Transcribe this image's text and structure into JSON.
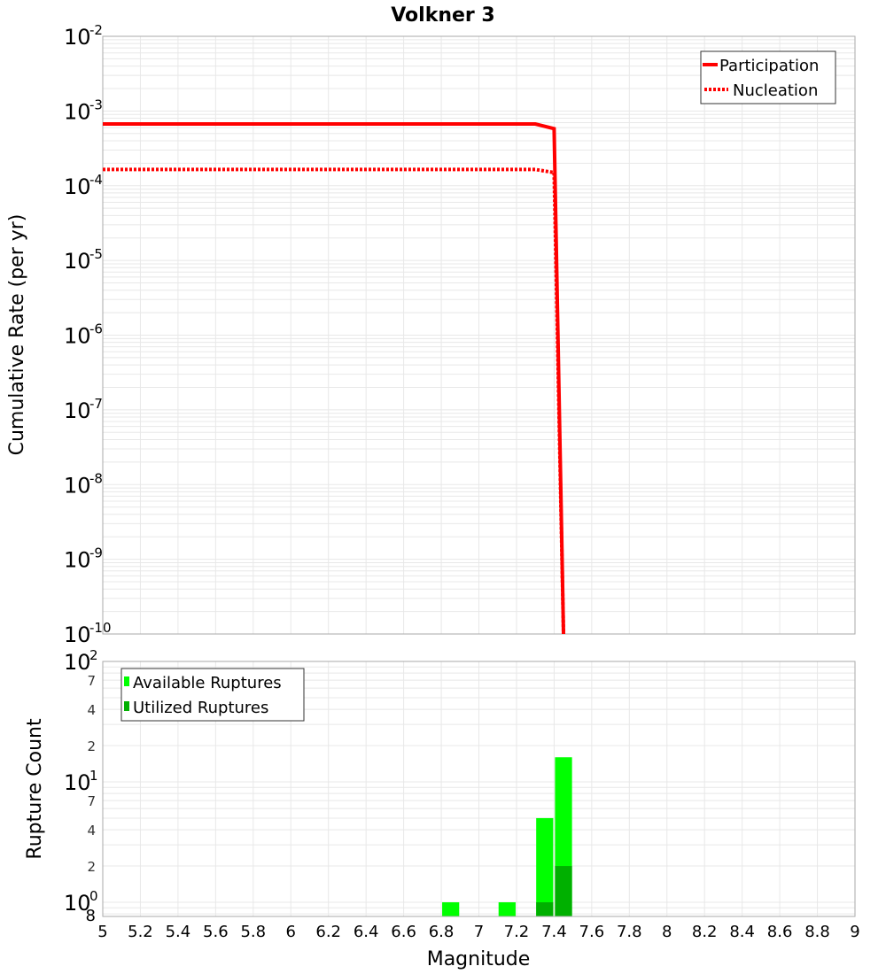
{
  "chart_data": [
    {
      "type": "line",
      "title": "Volkner 3",
      "xlabel": "Magnitude",
      "ylabel": "Cumulative Rate (per yr)",
      "yscale": "log",
      "xlim": [
        5,
        9
      ],
      "ylim": [
        1e-10,
        0.01
      ],
      "grid": true,
      "legend_position": "upper-right",
      "y_tick_labels": [
        "10^-2",
        "10^-3",
        "10^-4",
        "10^-5",
        "10^-6",
        "10^-7",
        "10^-8",
        "10^-9",
        "10^-10"
      ],
      "series": [
        {
          "name": "Participation",
          "style": "solid",
          "color": "#ff0000",
          "x": [
            5.0,
            7.3,
            7.4,
            7.45
          ],
          "y": [
            0.00067,
            0.00067,
            0.00058,
            1e-10
          ]
        },
        {
          "name": "Nucleation",
          "style": "dotted",
          "color": "#ff0000",
          "x": [
            5.0,
            7.3,
            7.4,
            7.45
          ],
          "y": [
            0.000165,
            0.000165,
            0.00015,
            1e-10
          ]
        }
      ]
    },
    {
      "type": "bar",
      "title": "",
      "xlabel": "Magnitude",
      "ylabel": "Rupture Count",
      "yscale": "log",
      "xlim": [
        5,
        9
      ],
      "ylim": [
        0.76,
        100
      ],
      "grid": true,
      "legend_position": "upper-left",
      "y_tick_labels": [
        "10^2",
        "7",
        "4",
        "2",
        "10^1",
        "7",
        "4",
        "2",
        "10^0",
        "8"
      ],
      "x_tick_labels": [
        "5",
        "5.2",
        "5.4",
        "5.6",
        "5.8",
        "6",
        "6.2",
        "6.4",
        "6.6",
        "6.8",
        "7",
        "7.2",
        "7.4",
        "7.6",
        "7.8",
        "8",
        "8.2",
        "8.4",
        "8.6",
        "8.8",
        "9"
      ],
      "bin_width": 0.1,
      "categories": [
        6.85,
        7.15,
        7.35,
        7.45
      ],
      "series": [
        {
          "name": "Available Ruptures",
          "color": "#00ff00",
          "values": [
            1,
            1,
            5,
            16
          ]
        },
        {
          "name": "Utilized Ruptures",
          "color": "#00b000",
          "values": [
            0,
            0,
            1,
            2
          ]
        }
      ]
    }
  ],
  "labels": {
    "title": "Volkner 3",
    "top_ylabel": "Cumulative Rate (per yr)",
    "bottom_ylabel": "Rupture Count",
    "xlabel": "Magnitude",
    "legend_top": [
      "Participation",
      "Nucleation"
    ],
    "legend_bottom": [
      "Available Ruptures",
      "Utilized Ruptures"
    ]
  },
  "colors": {
    "line": "#ff0000",
    "available": "#00ff00",
    "utilized": "#00b000",
    "grid": "#e8e8e8",
    "frame": "#aaaaaa"
  }
}
